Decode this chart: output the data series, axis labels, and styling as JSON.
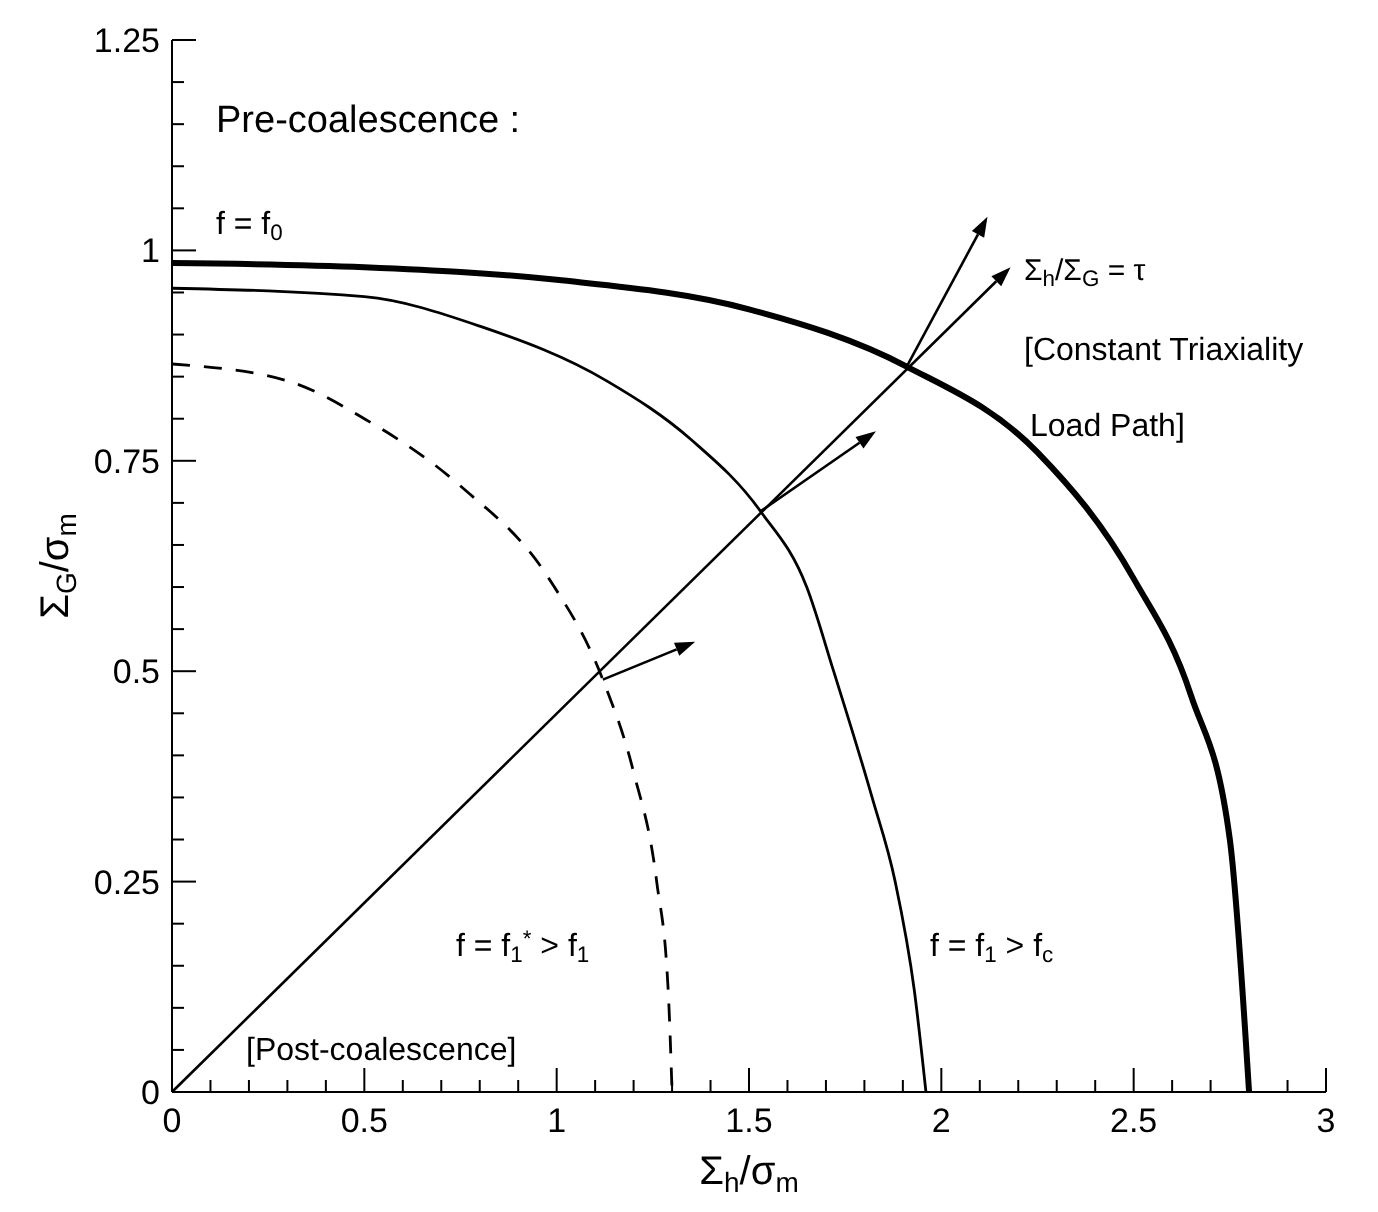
{
  "chart_data": {
    "type": "line",
    "xlabel": "Σ$_{h}$/σ$_{m}$",
    "ylabel": "Σ$_{G}$/σ$_{m}$",
    "xlim": [
      0,
      3
    ],
    "ylim": [
      0,
      1.25
    ],
    "xticks": [
      0,
      {
        "value": 0.1,
        "label": null
      },
      {
        "value": 0.2,
        "label": null
      },
      {
        "value": 0.3,
        "label": null
      },
      {
        "value": 0.4,
        "label": null
      },
      0.5,
      {
        "value": 0.6,
        "label": null
      },
      {
        "value": 0.7,
        "label": null
      },
      {
        "value": 0.8,
        "label": null
      },
      {
        "value": 0.9,
        "label": null
      },
      1,
      {
        "value": 1.1,
        "label": null
      },
      {
        "value": 1.2,
        "label": null
      },
      {
        "value": 1.3,
        "label": null
      },
      {
        "value": 1.4,
        "label": null
      },
      1.5,
      {
        "value": 1.6,
        "label": null
      },
      {
        "value": 1.7,
        "label": null
      },
      {
        "value": 1.8,
        "label": null
      },
      {
        "value": 1.9,
        "label": null
      },
      2,
      {
        "value": 2.1,
        "label": null
      },
      {
        "value": 2.2,
        "label": null
      },
      {
        "value": 2.3,
        "label": null
      },
      {
        "value": 2.4,
        "label": null
      },
      2.5,
      {
        "value": 2.6,
        "label": null
      },
      {
        "value": 2.7,
        "label": null
      },
      {
        "value": 2.8,
        "label": null
      },
      {
        "value": 2.9,
        "label": null
      },
      3
    ],
    "yticks": [
      0,
      {
        "value": 0.05,
        "label": null
      },
      {
        "value": 0.1,
        "label": null
      },
      {
        "value": 0.15,
        "label": null
      },
      {
        "value": 0.2,
        "label": null
      },
      0.25,
      {
        "value": 0.3,
        "label": null
      },
      {
        "value": 0.35,
        "label": null
      },
      {
        "value": 0.4,
        "label": null
      },
      {
        "value": 0.45,
        "label": null
      },
      0.5,
      {
        "value": 0.55,
        "label": null
      },
      {
        "value": 0.6,
        "label": null
      },
      {
        "value": 0.65,
        "label": null
      },
      {
        "value": 0.7,
        "label": null
      },
      0.75,
      {
        "value": 0.8,
        "label": null
      },
      {
        "value": 0.85,
        "label": null
      },
      {
        "value": 0.9,
        "label": null
      },
      {
        "value": 0.95,
        "label": null
      },
      1,
      {
        "value": 1.05,
        "label": null
      },
      {
        "value": 1.1,
        "label": null
      },
      {
        "value": 1.15,
        "label": null
      },
      {
        "value": 1.2,
        "label": null
      },
      1.25
    ],
    "series": [
      {
        "color": "#000000",
        "line_style": "solid",
        "x": [
          0,
          0.5,
          1,
          1.5,
          1.91,
          2.25,
          2.5,
          2.65,
          2.75,
          2.8
        ],
        "values": [
          0.985,
          0.98,
          0.965,
          0.93,
          0.862,
          0.76,
          0.61,
          0.47,
          0.3,
          0
        ]
      },
      {
        "color": "#000000",
        "line_style": "solid",
        "x": [
          0,
          0.5,
          0.8,
          1.13,
          1.35,
          1.53,
          1.65,
          1.72,
          1.82,
          1.88,
          1.93,
          1.96
        ],
        "values": [
          0.955,
          0.945,
          0.91,
          0.845,
          0.775,
          0.69,
          0.6,
          0.5,
          0.35,
          0.25,
          0.12,
          0
        ]
      },
      {
        "color": "#000000",
        "line_style": "dashed",
        "x": [
          0,
          0.3,
          0.5,
          0.75,
          0.98,
          1.12,
          1.2,
          1.26,
          1.29,
          1.3
        ],
        "values": [
          0.865,
          0.845,
          0.8,
          0.72,
          0.61,
          0.49,
          0.38,
          0.25,
          0.12,
          0
        ]
      }
    ],
    "annotations": [
      "Pre-coalescence :",
      "f = f$_{0}$",
      "Σ$_{h}$/Σ$_{G}$ = τ",
      "[Constant Triaxiality",
      "Load Path]",
      "f  = f$_{1}$$^{*}$ > f$_{1}$",
      "f = f$_{1}$ > f$_{c}$",
      "[Post-coalescence]"
    ]
  }
}
